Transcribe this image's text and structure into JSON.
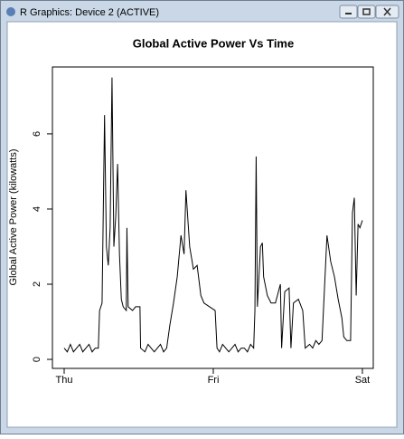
{
  "window": {
    "title": "R Graphics: Device 2 (ACTIVE)"
  },
  "chart_data": {
    "type": "line",
    "title": "Global Active Power Vs Time",
    "y_label": "Global Active Power (kilowatts)",
    "color": "#000000",
    "x": [
      0,
      0.5,
      1,
      1.5,
      2,
      2.5,
      3,
      3.5,
      4,
      4.5,
      5,
      5.5,
      5.7,
      6.1,
      6.5,
      6.8,
      7.1,
      7.4,
      7.7,
      8.0,
      8.3,
      8.6,
      8.9,
      9.2,
      9.5,
      10.0,
      10.1,
      10.3,
      11,
      11.5,
      12.2,
      12.3,
      13,
      13.5,
      14,
      14.5,
      15,
      15.5,
      16,
      16.5,
      17,
      17.6,
      18.2,
      18.8,
      19.3,
      19.6,
      20.2,
      20.8,
      21.4,
      22,
      22.5,
      23.4,
      24.3,
      24.6,
      25,
      25.5,
      26,
      26.5,
      27,
      27.5,
      28,
      28.5,
      29,
      29.5,
      30,
      30.5,
      30.7,
      30.9,
      31.1,
      31.6,
      31.9,
      32.1,
      32.7,
      33.3,
      34.0,
      34.8,
      35.0,
      35.5,
      36.2,
      36.5,
      36.9,
      37.7,
      38.4,
      38.8,
      39.5,
      40,
      40.5,
      41,
      41.5,
      42.3,
      42.9,
      43.5,
      44.1,
      44.7,
      45,
      45.5,
      46.1,
      46.4,
      46.7,
      47,
      47.3,
      47.6,
      48
    ],
    "values": [
      0.3,
      0.2,
      0.4,
      0.2,
      0.3,
      0.4,
      0.2,
      0.3,
      0.4,
      0.2,
      0.3,
      0.3,
      1.3,
      1.5,
      6.5,
      3.0,
      2.5,
      3.5,
      7.5,
      3.0,
      3.8,
      5.2,
      2.8,
      1.6,
      1.4,
      1.3,
      3.5,
      1.4,
      1.3,
      1.4,
      1.4,
      0.3,
      0.2,
      0.4,
      0.3,
      0.2,
      0.3,
      0.4,
      0.2,
      0.3,
      0.9,
      1.5,
      2.2,
      3.3,
      2.8,
      4.5,
      3.0,
      2.4,
      2.5,
      1.7,
      1.5,
      1.4,
      1.3,
      0.3,
      0.2,
      0.4,
      0.3,
      0.2,
      0.3,
      0.4,
      0.2,
      0.3,
      0.3,
      0.2,
      0.4,
      0.3,
      1.3,
      5.4,
      1.4,
      3.0,
      3.1,
      2.2,
      1.7,
      1.5,
      1.5,
      2.0,
      0.3,
      1.8,
      1.9,
      0.3,
      1.5,
      1.6,
      1.3,
      0.3,
      0.4,
      0.3,
      0.5,
      0.4,
      0.5,
      3.3,
      2.6,
      2.2,
      1.6,
      1.1,
      0.6,
      0.5,
      0.5,
      3.9,
      4.3,
      1.7,
      3.6,
      3.5,
      3.7
    ],
    "xlim": [
      -1.89,
      49.75
    ],
    "xticks": [
      {
        "value": 0,
        "label": "Thu"
      },
      {
        "value": 24,
        "label": "Fri"
      },
      {
        "value": 48,
        "label": "Sat"
      }
    ],
    "ylim": [
      -0.24,
      7.78
    ],
    "yticks": [
      0,
      2,
      4,
      6
    ]
  }
}
